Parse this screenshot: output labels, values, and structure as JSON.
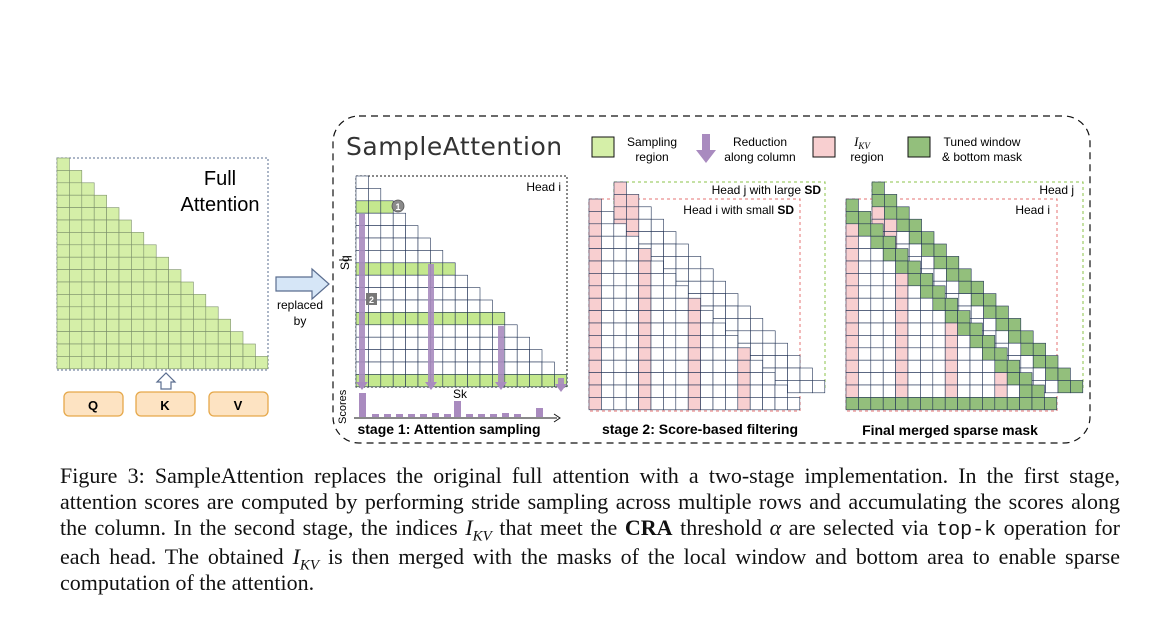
{
  "colors": {
    "sampling": "#d5efa8",
    "sampling_strong": "#c4e88e",
    "reduction": "#a98bbf",
    "ikv": "#f8cfd0",
    "tuned": "#93bf7c",
    "key_box": "#fde3c2",
    "key_border": "#e6a84a",
    "stroke": "#111111",
    "blue_stroke": "#5a6d8f"
  },
  "left_panel": {
    "title_line1": "Full",
    "title_line2": "Attention",
    "keys": [
      "Q",
      "K",
      "V"
    ],
    "arrow_label_line1": "replaced",
    "arrow_label_line2": "by"
  },
  "panel": {
    "title": "SampleAttention",
    "legend": {
      "sampling_line1": "Sampling",
      "sampling_line2": "region",
      "reduction_line1": "Reduction",
      "reduction_line2": "along column",
      "ikv_sym": "I",
      "ikv_sub": "KV",
      "ikv_line2": "region",
      "tuned_line1": "Tuned window",
      "tuned_line2": "& bottom mask"
    }
  },
  "stage1": {
    "head_label": "Head i",
    "sq_label": "Sq",
    "sk_label": "Sk",
    "scores_label": "Scores",
    "badge1": "1",
    "badge2": "2",
    "caption": "stage 1: Attention sampling"
  },
  "stage2": {
    "head_j_text": "Head j with large ",
    "head_j_bold": "SD",
    "head_i_text": "Head i with small ",
    "head_i_bold": "SD",
    "caption": "stage 2: Score-based filtering"
  },
  "stage3": {
    "head_j": "Head j",
    "head_i": "Head i",
    "caption": "Final merged sparse mask"
  },
  "figure_caption": {
    "label": "Figure 3:",
    "p1": "SampleAttention replaces the original full attention with a two-stage implementation. In the first stage, attention scores are computed by performing stride sampling across multiple rows and accumulating the scores along the column. In the second stage, the indices ",
    "ikv_sym": "I",
    "ikv_sub": "KV",
    "p2": " that meet the ",
    "bold": "CRA",
    "p3": " threshold ",
    "alpha": "α",
    "p4": " are selected via ",
    "mono": "top-k",
    "p5": " operation for each head. The obtained ",
    "p6": " is then merged with the masks of the local window and bottom area to enable sparse computation of the attention."
  }
}
